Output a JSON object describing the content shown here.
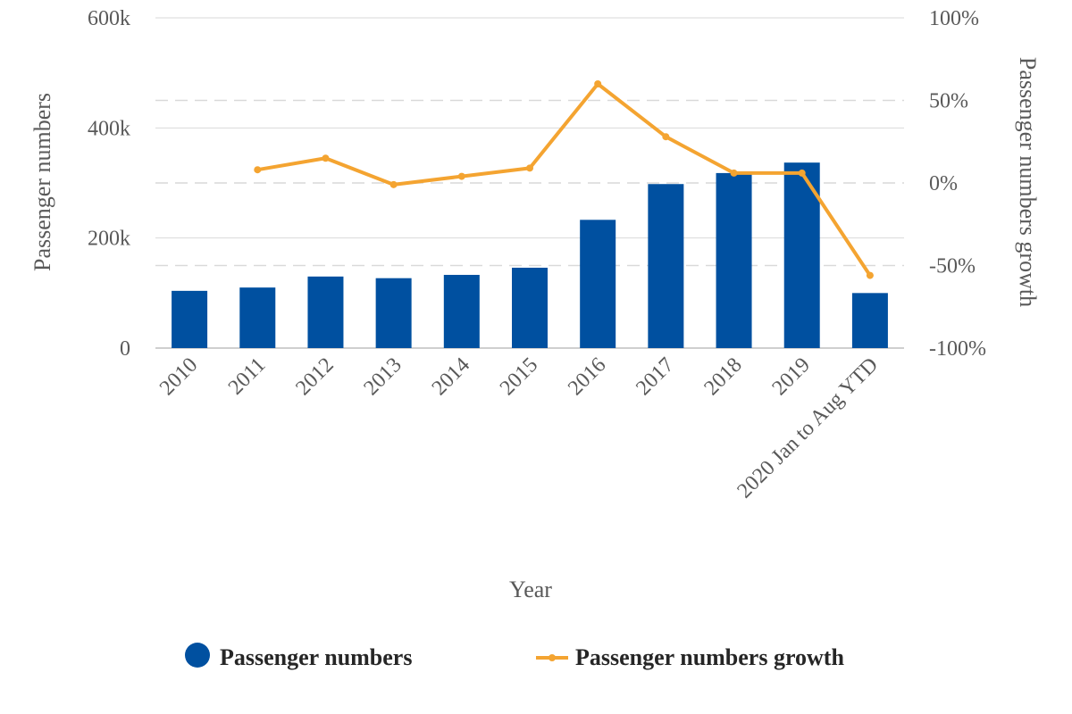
{
  "chart_data": {
    "type": "bar",
    "categories": [
      "2010",
      "2011",
      "2012",
      "2013",
      "2014",
      "2015",
      "2016",
      "2017",
      "2018",
      "2019",
      "2020 Jan to Aug YTD"
    ],
    "series": [
      {
        "name": "Passenger numbers",
        "type": "bar",
        "axis": "left",
        "color": "#0050A0",
        "values": [
          104000,
          110000,
          130000,
          127000,
          133000,
          146000,
          233000,
          298000,
          318000,
          337000,
          100000
        ]
      },
      {
        "name": "Passenger numbers growth",
        "type": "line",
        "axis": "right",
        "color": "#F4A431",
        "values": [
          null,
          8,
          15,
          -1,
          4,
          9,
          60,
          28,
          6,
          6,
          -56
        ]
      }
    ],
    "xlabel": "Year",
    "ylabel": "Passenger numbers",
    "ylabel_right": "Passenger numbers growth",
    "ylim": [
      0,
      600000
    ],
    "ylim_right": [
      -100,
      100
    ],
    "yticks": [
      "0",
      "200k",
      "400k",
      "600k"
    ],
    "yticks_right": [
      "-100%",
      "-50%",
      "0%",
      "50%",
      "100%"
    ],
    "legend": "bottom",
    "grid": true
  }
}
